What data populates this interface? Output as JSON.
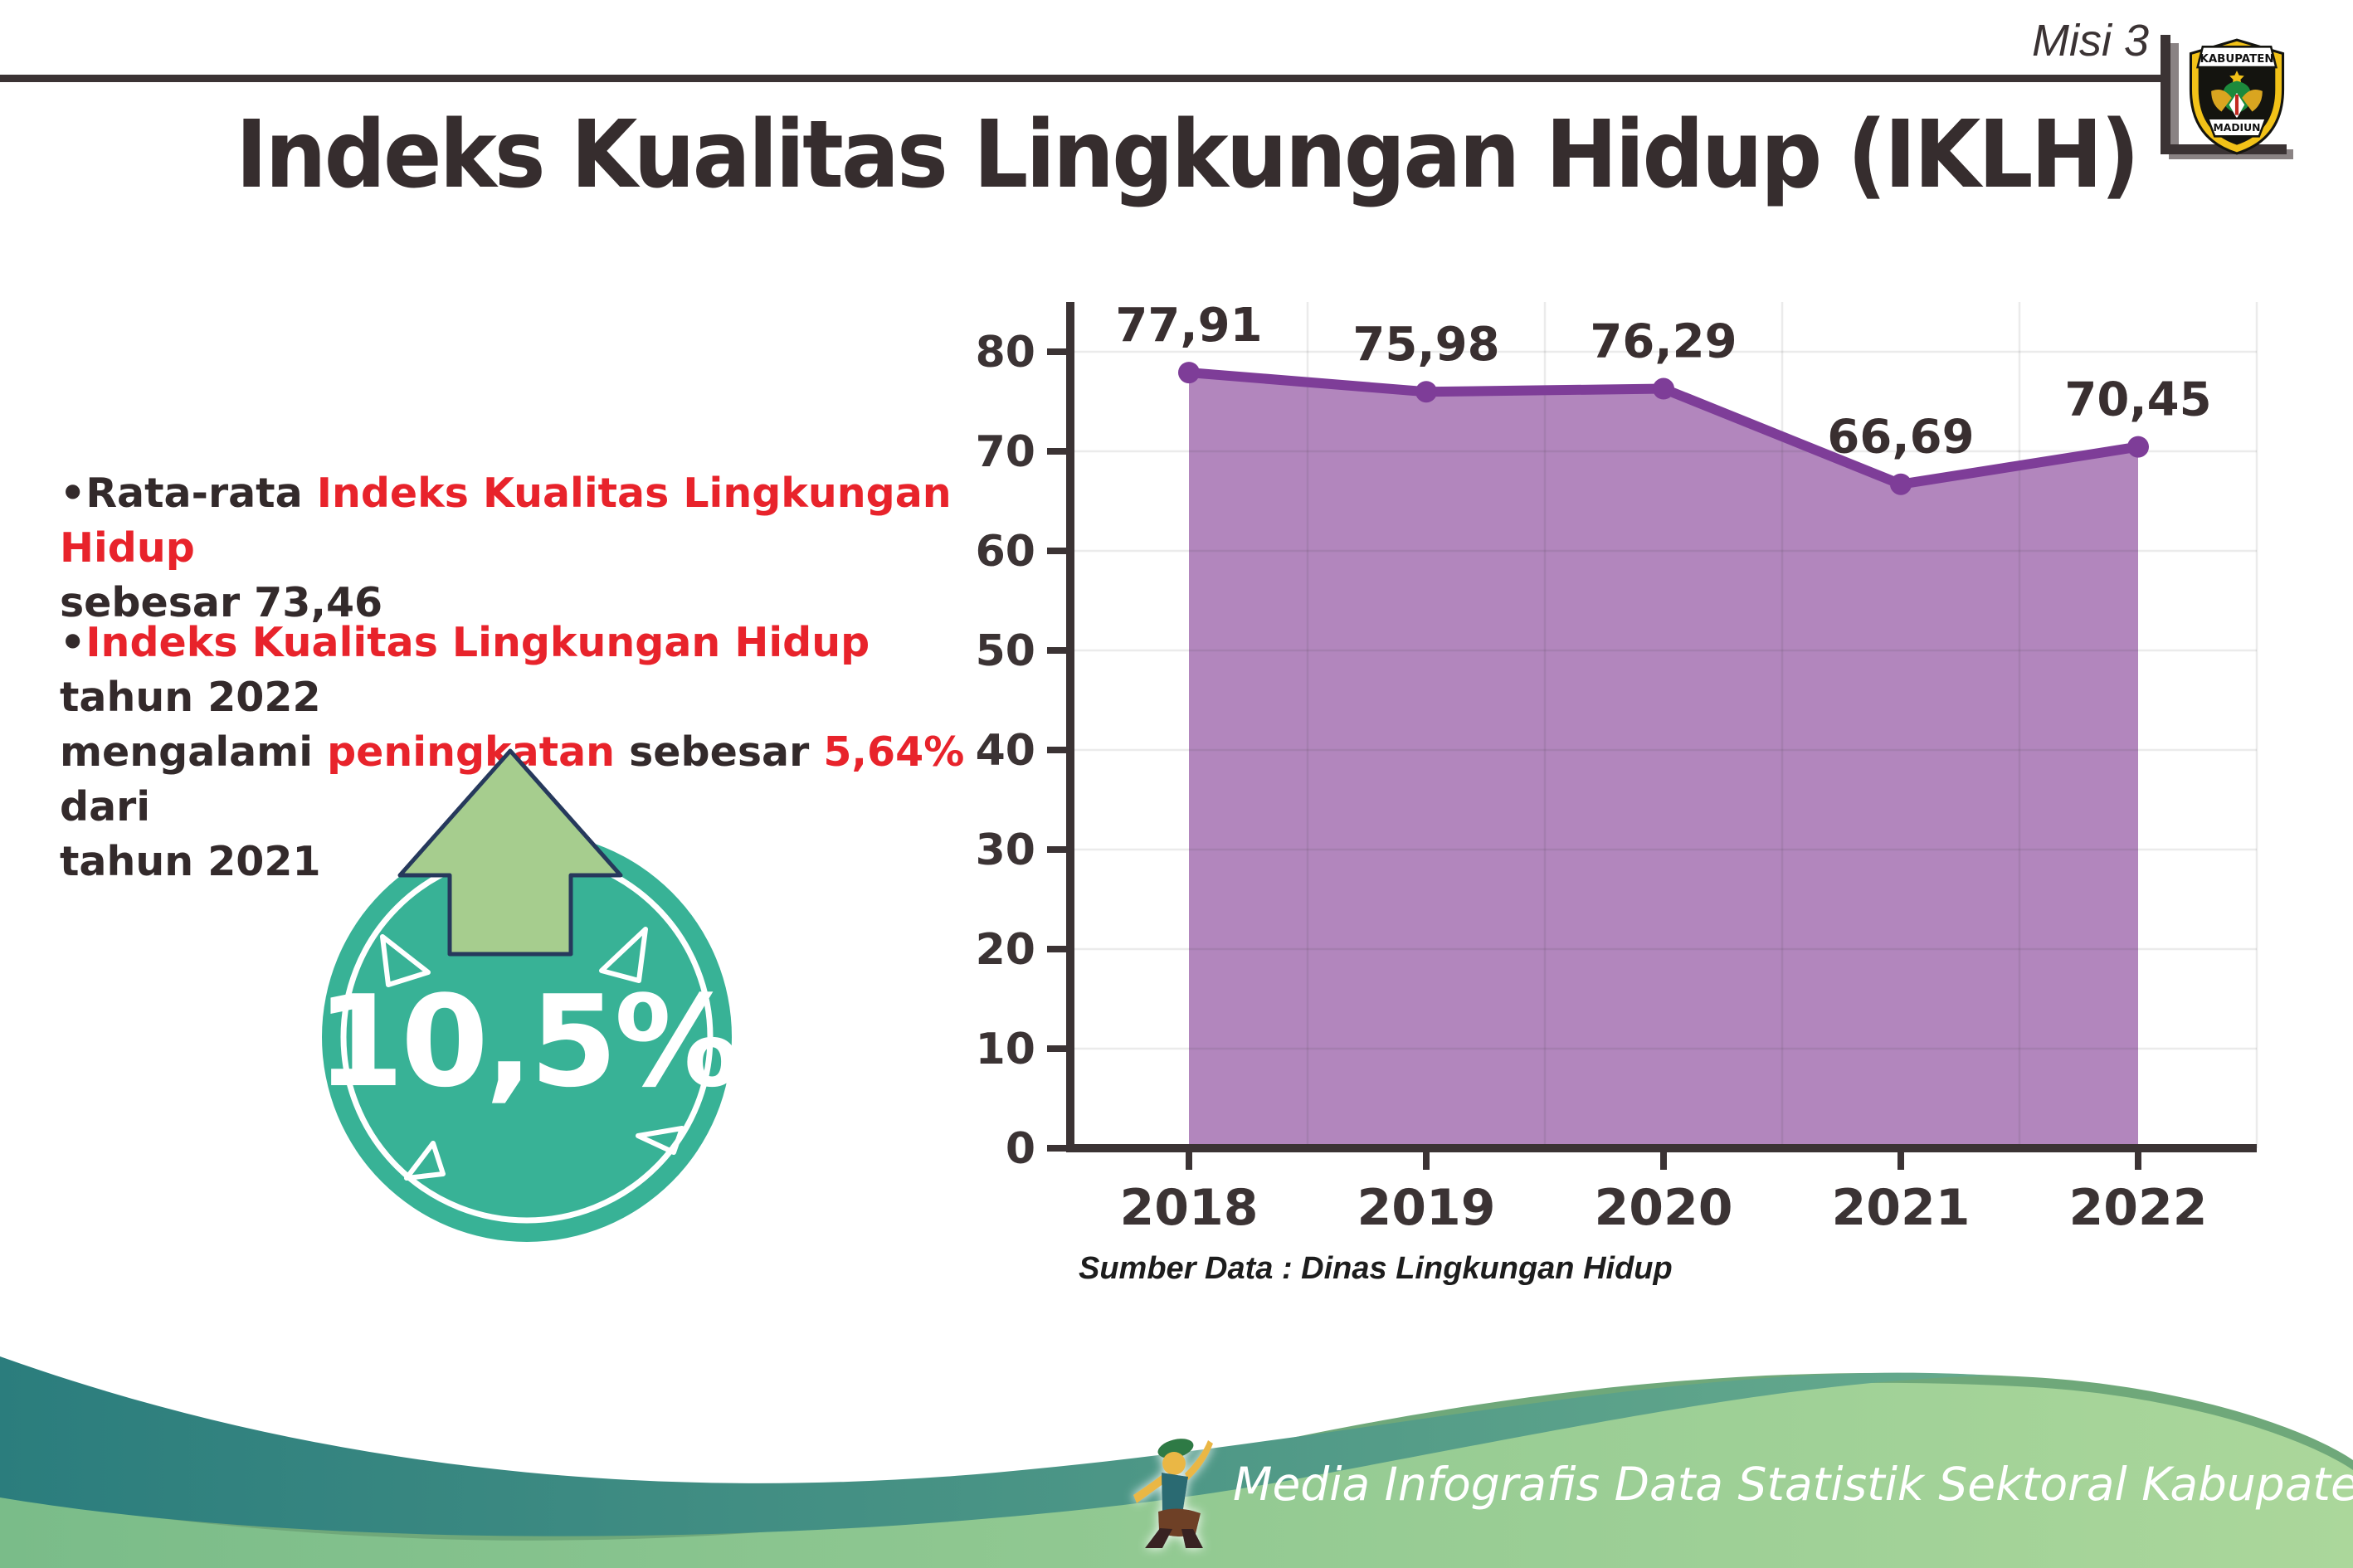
{
  "header": {
    "misi": "Misi 3",
    "title": "Indeks Kualitas Lingkungan Hidup (IKLH)"
  },
  "logo": {
    "top": "KABUPATEN",
    "bottom": "MADIUN"
  },
  "bullets": [
    {
      "segments": [
        {
          "text": "Rata-rata ",
          "color": "dark"
        },
        {
          "text": "Indeks Kualitas Lingkungan Hidup",
          "color": "red"
        },
        {
          "text": "\nsebesar 73,46",
          "color": "dark"
        }
      ]
    },
    {
      "segments": [
        {
          "text": "Indeks Kualitas Lingkungan Hidup",
          "color": "red"
        },
        {
          "text": " tahun 2022\nmengalami ",
          "color": "dark"
        },
        {
          "text": "peningkatan",
          "color": "red"
        },
        {
          "text": " sebesar ",
          "color": "dark"
        },
        {
          "text": "5,64%",
          "color": "red"
        },
        {
          "text": " dari\ntahun 2021",
          "color": "dark"
        }
      ]
    }
  ],
  "badge": {
    "value": "10,5%",
    "circle_color": "#38b296",
    "arrow_color": "#a6cd8e",
    "arrow_outline": "#26395c"
  },
  "chart_data": {
    "type": "area",
    "categories": [
      "2018",
      "2019",
      "2020",
      "2021",
      "2022"
    ],
    "series": [
      {
        "name": "IKLH",
        "values": [
          77.91,
          75.98,
          76.29,
          66.69,
          70.45
        ]
      }
    ],
    "value_labels": [
      "77,91",
      "75,98",
      "76,29",
      "66,69",
      "70,45"
    ],
    "ylim": [
      0,
      85
    ],
    "yticks": [
      0,
      10,
      20,
      30,
      40,
      50,
      60,
      70,
      80
    ],
    "grid": true,
    "legend": false,
    "xlabel": "",
    "ylabel": "",
    "colors": {
      "area": "#b286bd",
      "line": "#7e3d98",
      "axis": "#3b3334",
      "label": "#392f30"
    }
  },
  "source_note": "Sumber Data : Dinas Lingkungan Hidup",
  "footer": {
    "text": "Media Infografis Data Statistik Sektoral Kabupaten Madiun |",
    "teal_left": "#2b7d7d",
    "teal_right": "#66aa8d",
    "green_left": "#7abc89",
    "green_right": "#abd79b",
    "rim": "#6fa87a"
  }
}
